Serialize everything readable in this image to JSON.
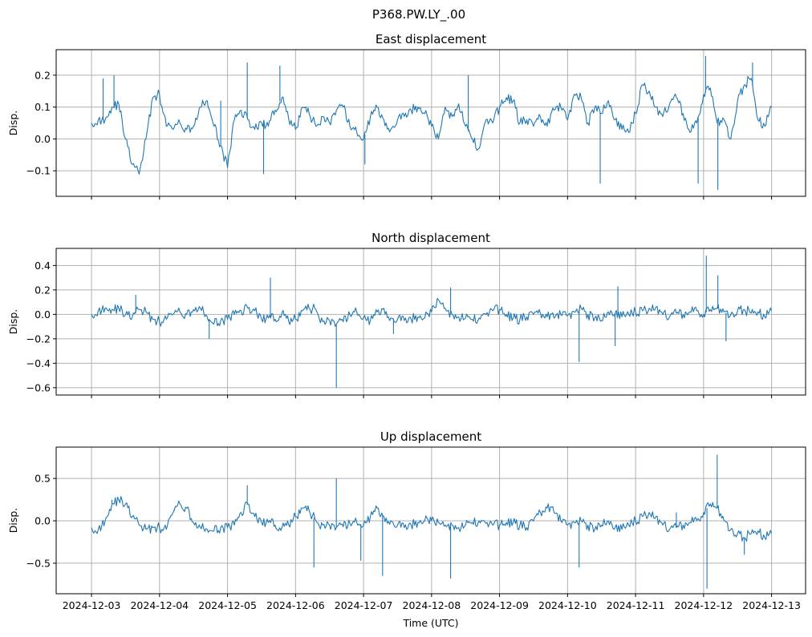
{
  "figure": {
    "suptitle": "P368.PW.LY_.00",
    "xlabel": "Time (UTC)"
  },
  "colors": {
    "series": "#1f77b4",
    "grid": "#b0b0b0",
    "axis": "#000000",
    "background": "#ffffff"
  },
  "chart_data": [
    {
      "type": "line",
      "title": "East displacement",
      "ylabel": "Disp.",
      "xlabel": "",
      "x_unit": "days since 2024-12-03 00:00 UTC",
      "xlim": [
        -0.52,
        10.5
      ],
      "ylim": [
        -0.18,
        0.28
      ],
      "grid": true,
      "xticks": [
        0,
        1,
        2,
        3,
        4,
        5,
        6,
        7,
        8,
        9,
        10
      ],
      "xtick_labels": [
        "2024-12-03",
        "2024-12-04",
        "2024-12-05",
        "2024-12-06",
        "2024-12-07",
        "2024-12-08",
        "2024-12-09",
        "2024-12-10",
        "2024-12-11",
        "2024-12-12",
        "2024-12-13"
      ],
      "show_xtick_labels": false,
      "yticks": [
        -0.1,
        0.0,
        0.1,
        0.2
      ],
      "ytick_labels": [
        "−0.1",
        "0.0",
        "0.1",
        "0.2"
      ],
      "series": [
        {
          "name": "East",
          "x": [
            0,
            0.1,
            0.2,
            0.3,
            0.4,
            0.5,
            0.6,
            0.7,
            0.8,
            0.9,
            1.0,
            1.1,
            1.2,
            1.3,
            1.4,
            1.5,
            1.6,
            1.7,
            1.8,
            1.9,
            2.0,
            2.1,
            2.2,
            2.3,
            2.4,
            2.5,
            2.6,
            2.7,
            2.8,
            2.9,
            3.0,
            3.1,
            3.2,
            3.3,
            3.4,
            3.5,
            3.6,
            3.7,
            3.8,
            3.9,
            4.0,
            4.1,
            4.2,
            4.3,
            4.4,
            4.5,
            4.6,
            4.7,
            4.8,
            4.9,
            5.0,
            5.1,
            5.2,
            5.3,
            5.4,
            5.5,
            5.6,
            5.7,
            5.8,
            5.9,
            6.0,
            6.1,
            6.2,
            6.3,
            6.4,
            6.5,
            6.6,
            6.7,
            6.8,
            6.9,
            7.0,
            7.1,
            7.2,
            7.3,
            7.4,
            7.5,
            7.6,
            7.7,
            7.8,
            7.9,
            8.0,
            8.1,
            8.2,
            8.3,
            8.4,
            8.5,
            8.6,
            8.7,
            8.8,
            8.9,
            9.0,
            9.1,
            9.2,
            9.3,
            9.4,
            9.5,
            9.6,
            9.7,
            9.8,
            9.9,
            10.0
          ],
          "values": [
            0.05,
            0.06,
            0.06,
            0.1,
            0.11,
            0.0,
            -0.08,
            -0.11,
            0.0,
            0.13,
            0.14,
            0.04,
            0.03,
            0.05,
            0.03,
            0.04,
            0.1,
            0.12,
            0.04,
            -0.02,
            -0.09,
            0.06,
            0.09,
            0.06,
            0.03,
            0.05,
            0.04,
            0.09,
            0.13,
            0.06,
            0.03,
            0.1,
            0.08,
            0.04,
            0.07,
            0.05,
            0.09,
            0.1,
            0.04,
            0.02,
            0.0,
            0.07,
            0.1,
            0.06,
            0.03,
            0.06,
            0.07,
            0.09,
            0.1,
            0.08,
            0.04,
            0.0,
            0.1,
            0.07,
            0.11,
            0.04,
            0.0,
            -0.03,
            0.06,
            0.05,
            0.1,
            0.13,
            0.12,
            0.05,
            0.06,
            0.04,
            0.07,
            0.04,
            0.09,
            0.1,
            0.06,
            0.14,
            0.13,
            0.05,
            0.1,
            0.08,
            0.12,
            0.06,
            0.03,
            0.02,
            0.08,
            0.17,
            0.15,
            0.1,
            0.07,
            0.11,
            0.13,
            0.08,
            0.02,
            0.05,
            0.14,
            0.16,
            0.05,
            0.06,
            0.0,
            0.12,
            0.17,
            0.19,
            0.06,
            0.04,
            0.1
          ]
        }
      ],
      "spikes": [
        [
          0.17,
          0.19
        ],
        [
          0.33,
          0.2
        ],
        [
          1.9,
          0.12
        ],
        [
          2.29,
          0.24
        ],
        [
          2.53,
          -0.11
        ],
        [
          2.77,
          0.23
        ],
        [
          4.02,
          -0.08
        ],
        [
          5.54,
          0.2
        ],
        [
          7.48,
          -0.14
        ],
        [
          8.92,
          -0.14
        ],
        [
          9.03,
          0.26
        ],
        [
          9.21,
          -0.16
        ],
        [
          9.72,
          0.24
        ]
      ]
    },
    {
      "type": "line",
      "title": "North displacement",
      "ylabel": "Disp.",
      "xlabel": "",
      "x_unit": "days since 2024-12-03 00:00 UTC",
      "xlim": [
        -0.52,
        10.5
      ],
      "ylim": [
        -0.66,
        0.54
      ],
      "grid": true,
      "xticks": [
        0,
        1,
        2,
        3,
        4,
        5,
        6,
        7,
        8,
        9,
        10
      ],
      "xtick_labels": [
        "2024-12-03",
        "2024-12-04",
        "2024-12-05",
        "2024-12-06",
        "2024-12-07",
        "2024-12-08",
        "2024-12-09",
        "2024-12-10",
        "2024-12-11",
        "2024-12-12",
        "2024-12-13"
      ],
      "show_xtick_labels": false,
      "yticks": [
        -0.6,
        -0.4,
        -0.2,
        0.0,
        0.2,
        0.4
      ],
      "ytick_labels": [
        "−0.6",
        "−0.4",
        "−0.2",
        "0.0",
        "0.2",
        "0.4"
      ],
      "series": [
        {
          "name": "North",
          "x": [
            0,
            0.1,
            0.2,
            0.3,
            0.4,
            0.5,
            0.6,
            0.7,
            0.8,
            0.9,
            1.0,
            1.1,
            1.2,
            1.3,
            1.4,
            1.5,
            1.6,
            1.7,
            1.8,
            1.9,
            2.0,
            2.1,
            2.2,
            2.3,
            2.4,
            2.5,
            2.6,
            2.7,
            2.8,
            2.9,
            3.0,
            3.1,
            3.2,
            3.3,
            3.4,
            3.5,
            3.6,
            3.7,
            3.8,
            3.9,
            4.0,
            4.1,
            4.2,
            4.3,
            4.4,
            4.5,
            4.6,
            4.7,
            4.8,
            4.9,
            5.0,
            5.1,
            5.2,
            5.3,
            5.4,
            5.5,
            5.6,
            5.7,
            5.8,
            5.9,
            6.0,
            6.1,
            6.2,
            6.3,
            6.4,
            6.5,
            6.6,
            6.7,
            6.8,
            6.9,
            7.0,
            7.1,
            7.2,
            7.3,
            7.4,
            7.5,
            7.6,
            7.7,
            7.8,
            7.9,
            8.0,
            8.1,
            8.2,
            8.3,
            8.4,
            8.5,
            8.6,
            8.7,
            8.8,
            8.9,
            9.0,
            9.1,
            9.2,
            9.3,
            9.4,
            9.5,
            9.6,
            9.7,
            9.8,
            9.9,
            10.0
          ],
          "values": [
            0.0,
            0.03,
            0.05,
            0.04,
            0.05,
            0.0,
            -0.02,
            0.04,
            0.02,
            -0.04,
            -0.06,
            -0.04,
            0.0,
            0.02,
            0.0,
            0.04,
            0.05,
            -0.02,
            -0.08,
            -0.05,
            -0.04,
            0.0,
            0.03,
            0.05,
            0.03,
            -0.04,
            -0.03,
            -0.04,
            0.01,
            -0.06,
            -0.04,
            0.03,
            0.05,
            0.04,
            -0.06,
            -0.05,
            -0.08,
            -0.06,
            0.0,
            0.02,
            -0.03,
            -0.05,
            0.02,
            0.05,
            -0.03,
            -0.04,
            -0.05,
            -0.04,
            -0.02,
            -0.03,
            0.02,
            0.12,
            0.05,
            0.0,
            -0.02,
            -0.03,
            -0.04,
            -0.03,
            0.0,
            0.03,
            0.04,
            0.0,
            -0.03,
            -0.04,
            -0.02,
            0.0,
            0.01,
            -0.02,
            -0.03,
            0.0,
            -0.01,
            0.02,
            0.05,
            0.0,
            -0.03,
            -0.05,
            0.02,
            0.01,
            -0.02,
            0.0,
            0.02,
            0.03,
            0.05,
            0.06,
            0.0,
            -0.02,
            0.01,
            0.0,
            0.02,
            0.03,
            0.0,
            0.04,
            0.05,
            0.02,
            0.0,
            0.03,
            0.04,
            0.01,
            0.02,
            -0.02,
            0.03
          ]
        }
      ],
      "spikes": [
        [
          0.65,
          0.16
        ],
        [
          1.73,
          -0.2
        ],
        [
          2.63,
          0.3
        ],
        [
          3.6,
          -0.6
        ],
        [
          4.44,
          -0.16
        ],
        [
          5.28,
          0.22
        ],
        [
          7.17,
          -0.39
        ],
        [
          7.74,
          0.23
        ],
        [
          7.7,
          -0.26
        ],
        [
          9.04,
          0.48
        ],
        [
          9.21,
          0.32
        ],
        [
          9.33,
          -0.22
        ]
      ]
    },
    {
      "type": "line",
      "title": "Up displacement",
      "ylabel": "Disp.",
      "xlabel": "Time (UTC)",
      "x_unit": "days since 2024-12-03 00:00 UTC",
      "xlim": [
        -0.52,
        10.5
      ],
      "ylim": [
        -0.86,
        0.87
      ],
      "grid": true,
      "xticks": [
        0,
        1,
        2,
        3,
        4,
        5,
        6,
        7,
        8,
        9,
        10
      ],
      "xtick_labels": [
        "2024-12-03",
        "2024-12-04",
        "2024-12-05",
        "2024-12-06",
        "2024-12-07",
        "2024-12-08",
        "2024-12-09",
        "2024-12-10",
        "2024-12-11",
        "2024-12-12",
        "2024-12-13"
      ],
      "show_xtick_labels": true,
      "yticks": [
        -0.5,
        0.0,
        0.5
      ],
      "ytick_labels": [
        "−0.5",
        "0.0",
        "0.5"
      ],
      "series": [
        {
          "name": "Up",
          "x": [
            0,
            0.1,
            0.2,
            0.3,
            0.4,
            0.5,
            0.6,
            0.7,
            0.8,
            0.9,
            1.0,
            1.1,
            1.2,
            1.3,
            1.4,
            1.5,
            1.6,
            1.7,
            1.8,
            1.9,
            2.0,
            2.1,
            2.2,
            2.3,
            2.4,
            2.5,
            2.6,
            2.7,
            2.8,
            2.9,
            3.0,
            3.1,
            3.2,
            3.3,
            3.4,
            3.5,
            3.6,
            3.7,
            3.8,
            3.9,
            4.0,
            4.1,
            4.2,
            4.3,
            4.4,
            4.5,
            4.6,
            4.7,
            4.8,
            4.9,
            5.0,
            5.1,
            5.2,
            5.3,
            5.4,
            5.5,
            5.6,
            5.7,
            5.8,
            5.9,
            6.0,
            6.1,
            6.2,
            6.3,
            6.4,
            6.5,
            6.6,
            6.7,
            6.8,
            6.9,
            7.0,
            7.1,
            7.2,
            7.3,
            7.4,
            7.5,
            7.6,
            7.7,
            7.8,
            7.9,
            8.0,
            8.1,
            8.2,
            8.3,
            8.4,
            8.5,
            8.6,
            8.7,
            8.8,
            8.9,
            9.0,
            9.1,
            9.2,
            9.3,
            9.4,
            9.5,
            9.6,
            9.7,
            9.8,
            9.9,
            10.0
          ],
          "values": [
            -0.08,
            -0.1,
            0.0,
            0.2,
            0.25,
            0.2,
            0.05,
            -0.05,
            -0.1,
            -0.08,
            -0.08,
            -0.1,
            0.1,
            0.2,
            0.15,
            -0.02,
            -0.08,
            -0.1,
            -0.12,
            -0.08,
            -0.08,
            -0.05,
            0.1,
            0.2,
            0.05,
            -0.02,
            -0.02,
            -0.05,
            -0.08,
            -0.05,
            0.05,
            0.15,
            0.12,
            0.0,
            -0.05,
            -0.05,
            -0.08,
            -0.07,
            -0.03,
            -0.02,
            -0.05,
            0.05,
            0.15,
            0.05,
            0.0,
            -0.05,
            -0.08,
            -0.05,
            -0.02,
            0.0,
            0.0,
            -0.02,
            -0.05,
            -0.05,
            -0.08,
            -0.05,
            -0.02,
            0.0,
            -0.03,
            -0.05,
            -0.05,
            -0.02,
            -0.02,
            -0.05,
            -0.08,
            0.0,
            0.1,
            0.15,
            0.1,
            0.0,
            -0.05,
            -0.02,
            0.0,
            -0.05,
            -0.1,
            -0.05,
            0.0,
            -0.08,
            -0.1,
            -0.05,
            0.0,
            0.05,
            0.1,
            0.05,
            -0.05,
            -0.1,
            -0.08,
            -0.05,
            -0.02,
            0.0,
            0.1,
            0.2,
            0.15,
            0.0,
            -0.1,
            -0.15,
            -0.2,
            -0.15,
            -0.12,
            -0.2,
            -0.15
          ]
        }
      ],
      "spikes": [
        [
          0.3,
          0.25
        ],
        [
          1.22,
          0.15
        ],
        [
          2.29,
          0.42
        ],
        [
          3.27,
          -0.55
        ],
        [
          3.6,
          0.5
        ],
        [
          3.96,
          -0.47
        ],
        [
          4.28,
          -0.65
        ],
        [
          5.28,
          -0.68
        ],
        [
          7.17,
          -0.55
        ],
        [
          8.6,
          0.1
        ],
        [
          9.05,
          -0.8
        ],
        [
          9.2,
          0.78
        ],
        [
          9.6,
          -0.4
        ]
      ]
    }
  ]
}
